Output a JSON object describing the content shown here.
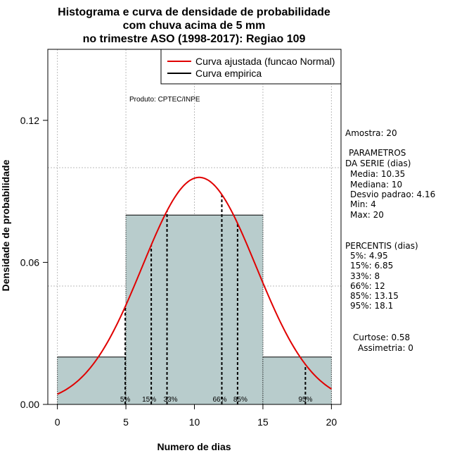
{
  "chart_data": {
    "type": "bar",
    "title_lines": [
      "Histograma e curva de densidade de probabilidade",
      "com chuva acima de 5 mm",
      "no trimestre ASO (1998-2017): Regiao 109"
    ],
    "xlabel": "Numero de dias",
    "ylabel": "Densidade de probabilidade",
    "xlim": [
      -0.7,
      20.7
    ],
    "ylim": [
      0,
      0.15
    ],
    "x_ticks": [
      0,
      5,
      10,
      15,
      20
    ],
    "x_tick_labels": [
      "0",
      "5",
      "10",
      "15",
      "20"
    ],
    "y_ticks": [
      0.0,
      0.06,
      0.12
    ],
    "y_tick_labels": [
      "0.00",
      "0.06",
      "0.12"
    ],
    "grid_x": [
      0,
      5,
      10,
      15,
      20
    ],
    "grid_y": [
      0.05,
      0.1,
      0.15
    ],
    "bins": [
      {
        "x0": 0,
        "x1": 5,
        "density": 0.02
      },
      {
        "x0": 5,
        "x1": 15,
        "density": 0.08
      },
      {
        "x0": 15,
        "x1": 20,
        "density": 0.02
      }
    ],
    "bar_color": "#b8cccc",
    "normal_curve": {
      "mean": 10.35,
      "sd": 4.16,
      "color": "#e00000"
    },
    "percentiles": [
      {
        "label": "5%",
        "x": 4.95
      },
      {
        "label": "15%",
        "x": 6.85
      },
      {
        "label": "33%",
        "x": 8
      },
      {
        "label": "66%",
        "x": 12
      },
      {
        "label": "85%",
        "x": 13.15
      },
      {
        "label": "95%",
        "x": 18.1
      }
    ],
    "legend": {
      "position": "top-right",
      "entries": [
        {
          "label": "Curva ajustada (funcao Normal)",
          "color": "#e00000"
        },
        {
          "label": "Curva empirica",
          "color": "#000000"
        }
      ]
    },
    "annotation": "Produto: CPTEC/INPE"
  },
  "stats": {
    "amostra": "Amostra: 20",
    "parametros_title_1": "PARAMETROS",
    "parametros_title_2": "DA SERIE (dias)",
    "media": "Media: 10.35",
    "mediana": "Mediana: 10",
    "desvio": "Desvio padrao: 4.16",
    "min": "Min: 4",
    "max": "Max: 20",
    "percentis_title": "PERCENTIS (dias)",
    "p5": "5%: 4.95",
    "p15": "15%: 6.85",
    "p33": "33%: 8",
    "p66": "66%: 12",
    "p85": "85%: 13.15",
    "p95": "95%: 18.1",
    "curtose": "Curtose: 0.58",
    "assimetria": "Assimetria: 0"
  }
}
